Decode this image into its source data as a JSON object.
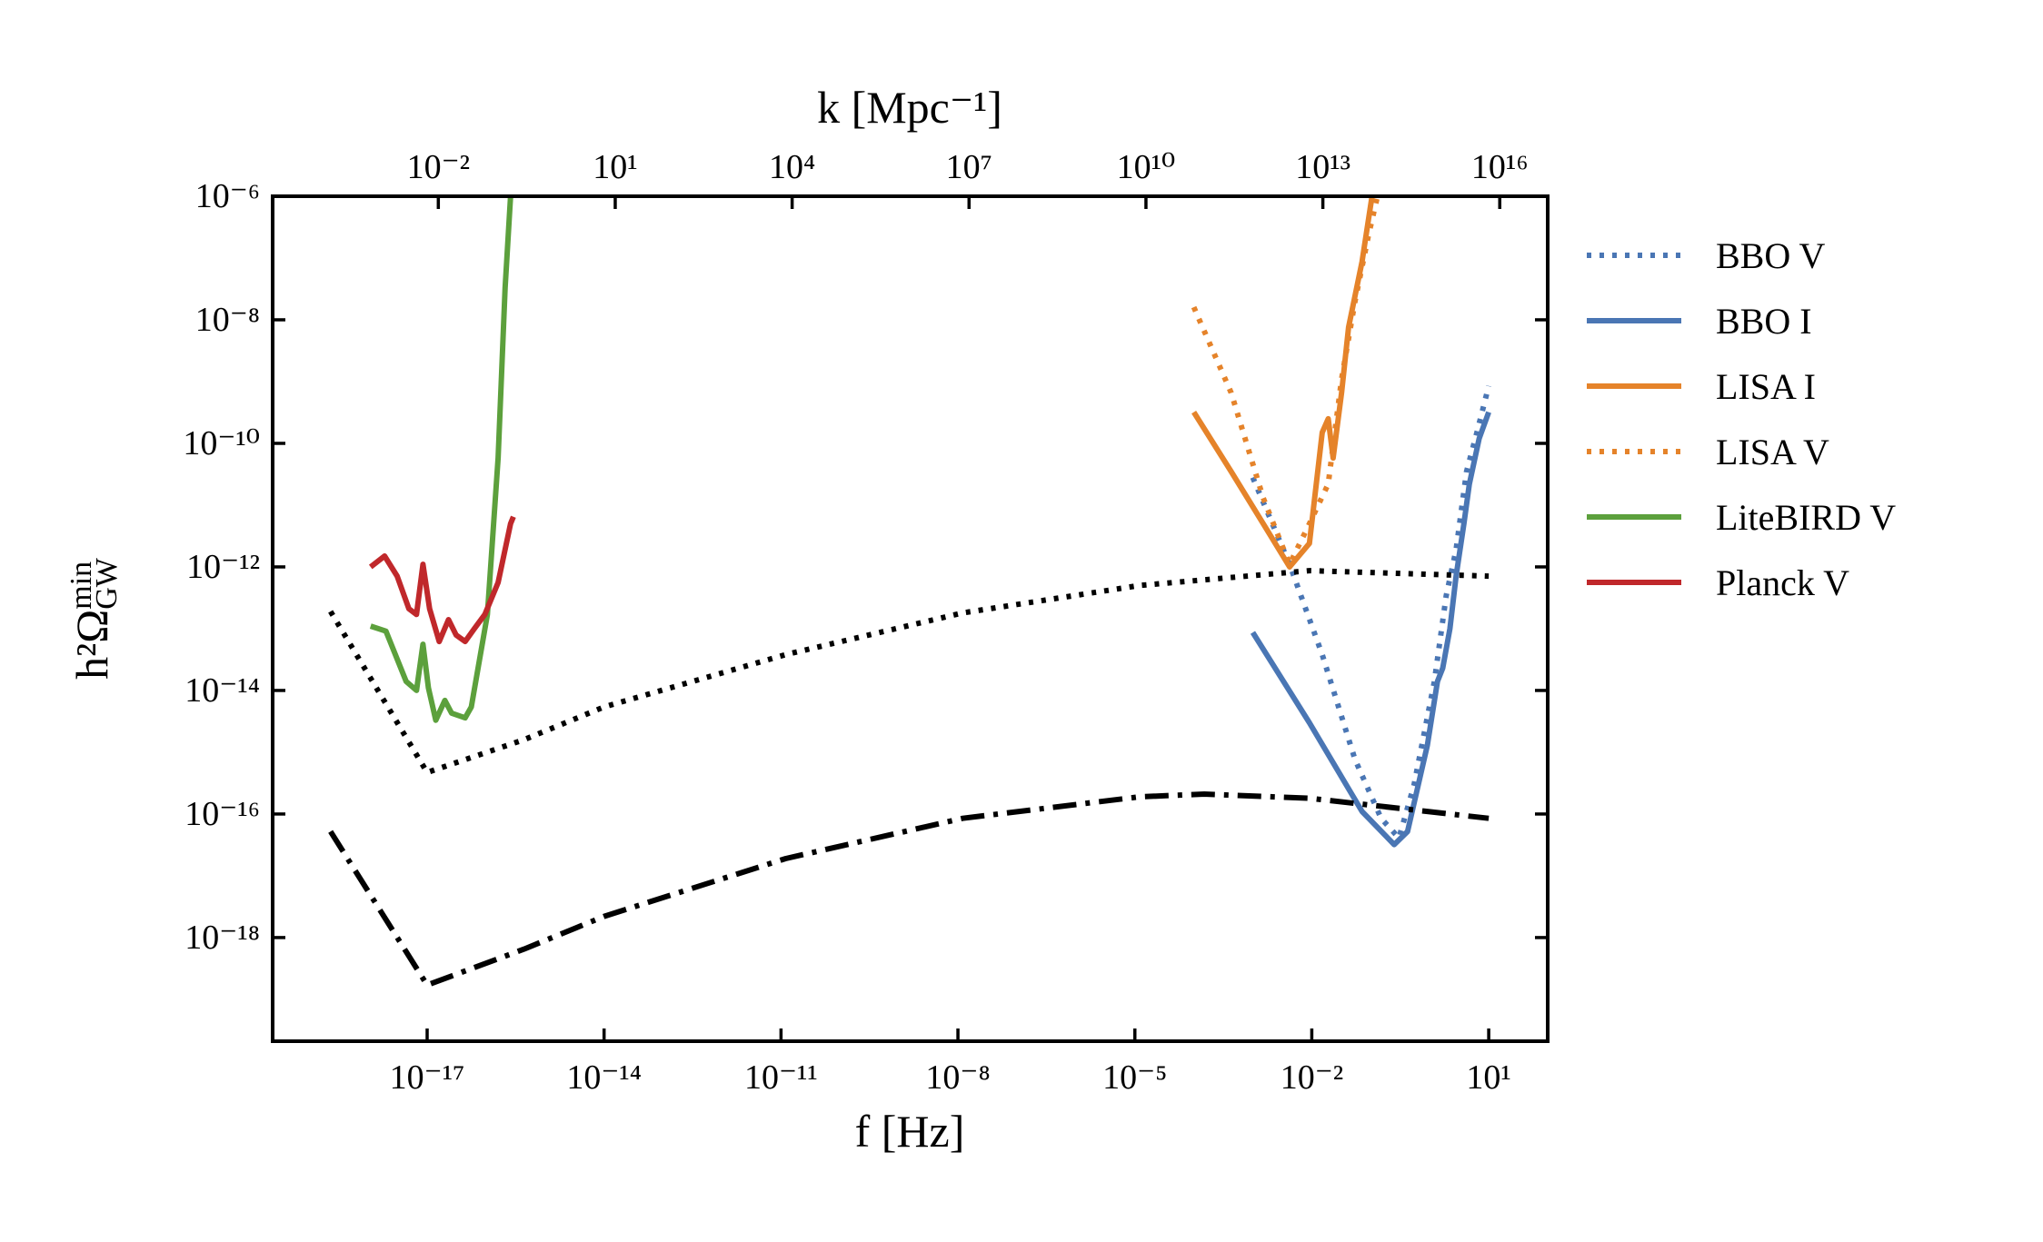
{
  "chart_data": {
    "type": "line",
    "xlabel": "f [Hz]",
    "x2label": "k [Mpc⁻¹]",
    "ylabel": {
      "base": "h²Ω",
      "sup": "min",
      "sub": "GW"
    },
    "xscale": "log",
    "yscale": "log",
    "xlim": [
      2.4e-20,
      100
    ],
    "x2lim": [
      1.55e-05,
      6.5e+16
    ],
    "ylim": [
      2.1e-20,
      1e-06
    ],
    "xticks": [
      {
        "value": 1e-17,
        "label": "10⁻¹⁷"
      },
      {
        "value": 1e-14,
        "label": "10⁻¹⁴"
      },
      {
        "value": 1e-11,
        "label": "10⁻¹¹"
      },
      {
        "value": 1e-08,
        "label": "10⁻⁸"
      },
      {
        "value": 1e-05,
        "label": "10⁻⁵"
      },
      {
        "value": 0.01,
        "label": "10⁻²"
      },
      {
        "value": 10,
        "label": "10¹"
      }
    ],
    "x2ticks": [
      {
        "value": 0.01,
        "label": "10⁻²"
      },
      {
        "value": 10,
        "label": "10¹"
      },
      {
        "value": 10000.0,
        "label": "10⁴"
      },
      {
        "value": 10000000.0,
        "label": "10⁷"
      },
      {
        "value": 10000000000.0,
        "label": "10¹⁰"
      },
      {
        "value": 10000000000000.0,
        "label": "10¹³"
      },
      {
        "value": 1e+16,
        "label": "10¹⁶"
      }
    ],
    "yticks": [
      {
        "value": 1e-06,
        "label": "10⁻⁶"
      },
      {
        "value": 1e-08,
        "label": "10⁻⁸"
      },
      {
        "value": 1e-10,
        "label": "10⁻¹⁰"
      },
      {
        "value": 1e-12,
        "label": "10⁻¹²"
      },
      {
        "value": 1e-14,
        "label": "10⁻¹⁴"
      },
      {
        "value": 1e-16,
        "label": "10⁻¹⁶"
      },
      {
        "value": 1e-18,
        "label": "10⁻¹⁸"
      }
    ],
    "legend": "outside right",
    "series": [
      {
        "name": "BBO V",
        "color": "#4a76b4",
        "linestyle": "dotted",
        "x": [
          0.001,
          0.0042,
          0.015,
          0.054,
          0.15,
          0.3,
          0.54,
          1.2,
          1.9,
          2.8,
          4.2,
          6.3,
          10
        ],
        "values": [
          2.8e-11,
          1.1e-12,
          3.8e-14,
          7.6e-16,
          8.5e-17,
          4.1e-17,
          2.9e-16,
          1.4e-14,
          3.4e-13,
          1.9e-12,
          3.5e-11,
          1.5e-10,
          8.5e-10
        ]
      },
      {
        "name": "BBO I",
        "color": "#4a76b4",
        "linestyle": "solid",
        "x": [
          0.001,
          0.0091,
          0.071,
          0.25,
          0.42,
          0.91,
          1.35,
          1.66,
          2.2,
          2.8,
          3.8,
          4.7,
          6.9,
          10
        ],
        "values": [
          8.7e-14,
          3e-15,
          1.1e-16,
          3.2e-17,
          5.2e-17,
          1.3e-15,
          1.4e-14,
          2.3e-14,
          1e-13,
          7.1e-13,
          5e-12,
          2.2e-11,
          1.2e-10,
          3.2e-10
        ]
      },
      {
        "name": "LISA I",
        "color": "#e5832a",
        "linestyle": "solid",
        "x": [
          0.0001,
          0.00043,
          0.0015,
          0.0042,
          0.0091,
          0.015,
          0.019,
          0.023,
          0.032,
          0.042,
          0.071,
          0.105
        ],
        "values": [
          3.2e-10,
          3.5e-11,
          5e-12,
          1e-12,
          2.4e-12,
          1.5e-10,
          2.5e-10,
          5.8e-11,
          6.6e-10,
          7.6e-09,
          8.7e-08,
          1e-06
        ]
      },
      {
        "name": "LISA V",
        "color": "#e5832a",
        "linestyle": "dotted",
        "x": [
          0.0001,
          0.00043,
          0.0015,
          0.0042,
          0.0091,
          0.019,
          0.032,
          0.054,
          0.091,
          0.13
        ],
        "values": [
          1.6e-08,
          6.6e-10,
          1.3e-11,
          1.1e-12,
          5e-12,
          2.2e-11,
          1.1e-09,
          2e-08,
          2.3e-07,
          1e-06
        ]
      },
      {
        "name": "LiteBIRD V",
        "color": "#5ca03c",
        "linestyle": "solid",
        "x": [
          1.1e-18,
          2e-18,
          4.4e-18,
          6.6e-18,
          8.5e-18,
          1.05e-17,
          1.4e-17,
          2e-17,
          2.6e-17,
          4.4e-17,
          5.6e-17,
          1.05e-16,
          1.6e-16,
          2.1e-16,
          2.6e-16
        ],
        "values": [
          1.1e-13,
          9.1e-14,
          1.4e-14,
          1e-14,
          5.6e-14,
          1.1e-14,
          3.3e-15,
          6.9e-15,
          4.3e-15,
          3.6e-15,
          5.4e-15,
          1.7e-13,
          5.8e-11,
          3.3e-08,
          1e-06
        ]
      },
      {
        "name": "Planck V",
        "color": "#c0282b",
        "linestyle": "solid",
        "x": [
          1.1e-18,
          1.9e-18,
          3.1e-18,
          4.9e-18,
          6.6e-18,
          8.5e-18,
          1.1e-17,
          1.6e-17,
          2.3e-17,
          3.1e-17,
          4.4e-17,
          6.3e-17,
          9.5e-17,
          1.6e-16,
          2.6e-16,
          2.9e-16
        ],
        "values": [
          1e-12,
          1.5e-12,
          7.1e-13,
          2.1e-13,
          1.7e-13,
          1.1e-12,
          2.1e-13,
          6.2e-14,
          1.4e-13,
          7.9e-14,
          6.2e-14,
          1e-13,
          1.7e-13,
          5.6e-13,
          5e-12,
          6.5e-12
        ]
      },
      {
        "color": "#000000",
        "linestyle": "dotted",
        "x": [
          2.3e-19,
          1e-17,
          4.4e-16,
          1e-14,
          1.2e-11,
          1.2e-08,
          1.2e-05,
          0.0091,
          10
        ],
        "values": [
          1.9e-13,
          4.7e-16,
          1.6e-15,
          5.4e-15,
          3.8e-14,
          1.8e-13,
          5e-13,
          8.7e-13,
          7.1e-13
        ]
      },
      {
        "color": "#000000",
        "linestyle": "dashdot",
        "x": [
          2.3e-19,
          1e-17,
          4.4e-16,
          1e-14,
          1.2e-11,
          1.2e-08,
          1.2e-05,
          0.00015,
          0.0091,
          10
        ],
        "values": [
          5.2e-17,
          1.7e-19,
          6.5e-19,
          2.2e-18,
          1.9e-17,
          8.5e-17,
          1.9e-16,
          2.1e-16,
          1.8e-16,
          8.5e-17
        ]
      }
    ]
  }
}
